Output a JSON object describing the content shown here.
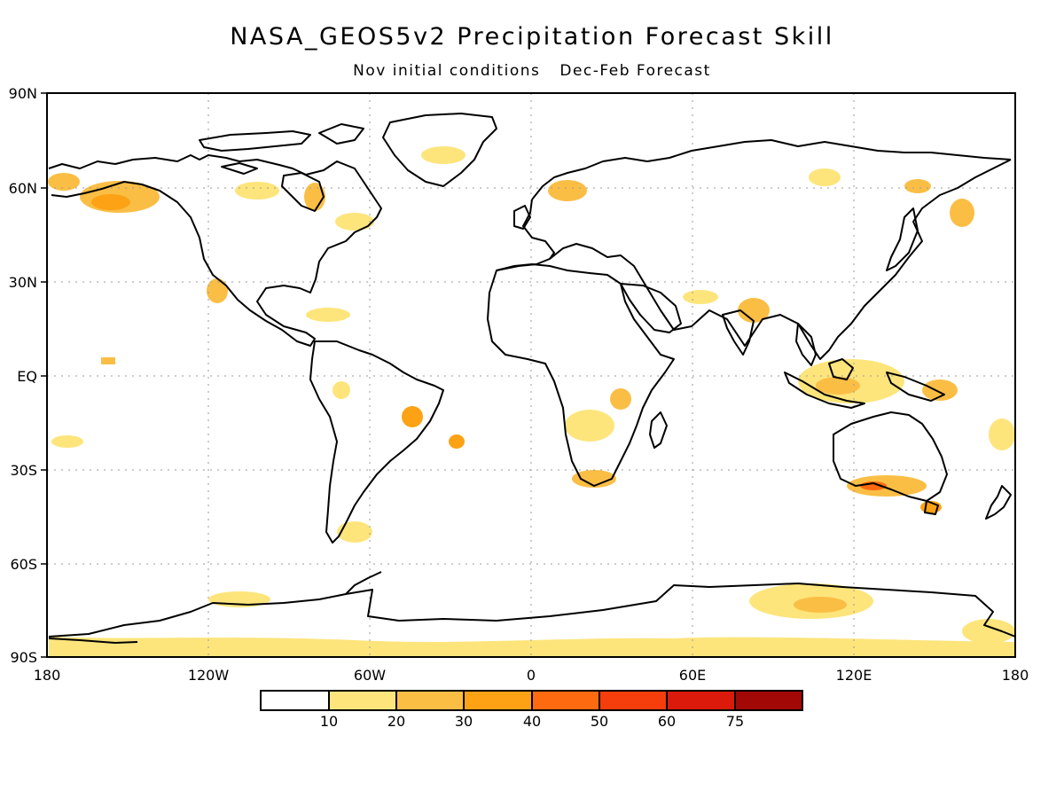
{
  "title": "NASA_GEOS5v2 Precipitation Forecast Skill",
  "subtitle": {
    "initial": "Nov initial conditions",
    "forecast": "Dec-Feb Forecast"
  },
  "lat_labels": [
    "90N",
    "60N",
    "30N",
    "EQ",
    "30S",
    "60S",
    "90S"
  ],
  "lon_labels": [
    "180",
    "120W",
    "60W",
    "0",
    "60E",
    "120E",
    "180"
  ],
  "colorbar": {
    "labels": [
      "10",
      "20",
      "30",
      "40",
      "50",
      "60",
      "75"
    ],
    "colors": [
      "#ffffff",
      "#fde57c",
      "#fbbe45",
      "#fca214",
      "#fd6a0f",
      "#f63d0c",
      "#dc1a0b",
      "#a10806"
    ]
  },
  "colors": {
    "coast": "#000000",
    "grid": "#9a9a9a"
  }
}
